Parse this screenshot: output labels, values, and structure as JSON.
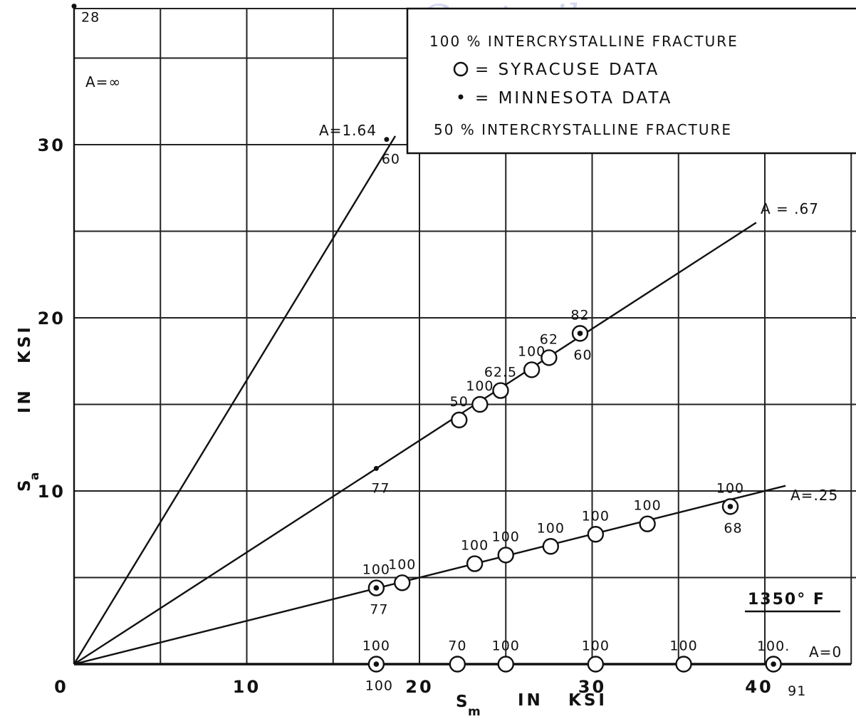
{
  "chart_data": {
    "type": "scatter",
    "xlabel": "S_m IN KSI",
    "ylabel": "S_a IN KSI",
    "xlim": [
      0,
      45
    ],
    "ylim": [
      0,
      38
    ],
    "x_tick_labels": [
      "0",
      "10",
      "20",
      "30",
      "40"
    ],
    "y_tick_labels": [
      "10",
      "20",
      "30"
    ],
    "grid": true,
    "temperature_label": "1350° F",
    "watermark": "Contrails",
    "legend": {
      "line1": "100 % INTERCRYSTALLINE FRACTURE",
      "syracuse_label": "= SYRACUSE DATA",
      "minnesota_label": "= MINNESOTA DATA",
      "line4": "50 % INTERCRYSTALLINE FRACTURE",
      "placement": "top-right"
    },
    "lines": [
      {
        "name": "A=∞",
        "x": [
          0,
          0
        ],
        "y": [
          0,
          38
        ]
      },
      {
        "name": "A=1.64",
        "x": [
          0,
          18.6
        ],
        "y": [
          0,
          30.5
        ]
      },
      {
        "name": "A = .67",
        "x": [
          0,
          39.5
        ],
        "y": [
          0,
          25.5
        ]
      },
      {
        "name": "A=.25",
        "x": [
          0,
          41.2
        ],
        "y": [
          0,
          10.3
        ]
      },
      {
        "name": "A=0",
        "x": [
          0,
          45
        ],
        "y": [
          0,
          0
        ]
      }
    ],
    "syracuse_points": [
      {
        "x": 19.0,
        "y": 4.7,
        "top": "100",
        "bottom": ""
      },
      {
        "x": 23.2,
        "y": 5.8,
        "top": "100",
        "bottom": ""
      },
      {
        "x": 25.0,
        "y": 6.3,
        "top": "100",
        "bottom": ""
      },
      {
        "x": 27.6,
        "y": 6.8,
        "top": "100",
        "bottom": ""
      },
      {
        "x": 30.2,
        "y": 7.5,
        "top": "100",
        "bottom": ""
      },
      {
        "x": 33.2,
        "y": 8.1,
        "top": "100",
        "bottom": ""
      },
      {
        "x": 22.3,
        "y": 14.1,
        "top": "50",
        "bottom": ""
      },
      {
        "x": 23.5,
        "y": 15.0,
        "top": "100",
        "bottom": ""
      },
      {
        "x": 24.7,
        "y": 15.8,
        "top": "62.5",
        "bottom": ""
      },
      {
        "x": 26.5,
        "y": 17.0,
        "top": "100",
        "bottom": ""
      },
      {
        "x": 27.5,
        "y": 17.7,
        "top": "62",
        "bottom": ""
      },
      {
        "x": 22.2,
        "y": 0,
        "top": "70",
        "bottom": ""
      },
      {
        "x": 25.0,
        "y": 0,
        "top": "100",
        "bottom": ""
      },
      {
        "x": 30.2,
        "y": 0,
        "top": "100",
        "bottom": ""
      },
      {
        "x": 35.3,
        "y": 0,
        "top": "100",
        "bottom": ""
      }
    ],
    "minnesota_points": [
      {
        "x": 18.1,
        "y": 30.3,
        "top": "",
        "bottom": "60"
      },
      {
        "x": 17.5,
        "y": 11.3,
        "top": "",
        "bottom": "77"
      },
      {
        "x": 0,
        "y": 38,
        "top": "28",
        "bottom": ""
      }
    ],
    "both_points": [
      {
        "x": 17.5,
        "y": 4.4,
        "top": "100",
        "bottom": "77"
      },
      {
        "x": 29.3,
        "y": 19.1,
        "top": "82",
        "bottom": "60"
      },
      {
        "x": 38.0,
        "y": 9.1,
        "top": "100",
        "bottom": "68"
      },
      {
        "x": 17.5,
        "y": 0,
        "top": "100",
        "bottom": "100"
      },
      {
        "x": 40.5,
        "y": 0,
        "top": "100.",
        "bottom": "91"
      }
    ]
  }
}
